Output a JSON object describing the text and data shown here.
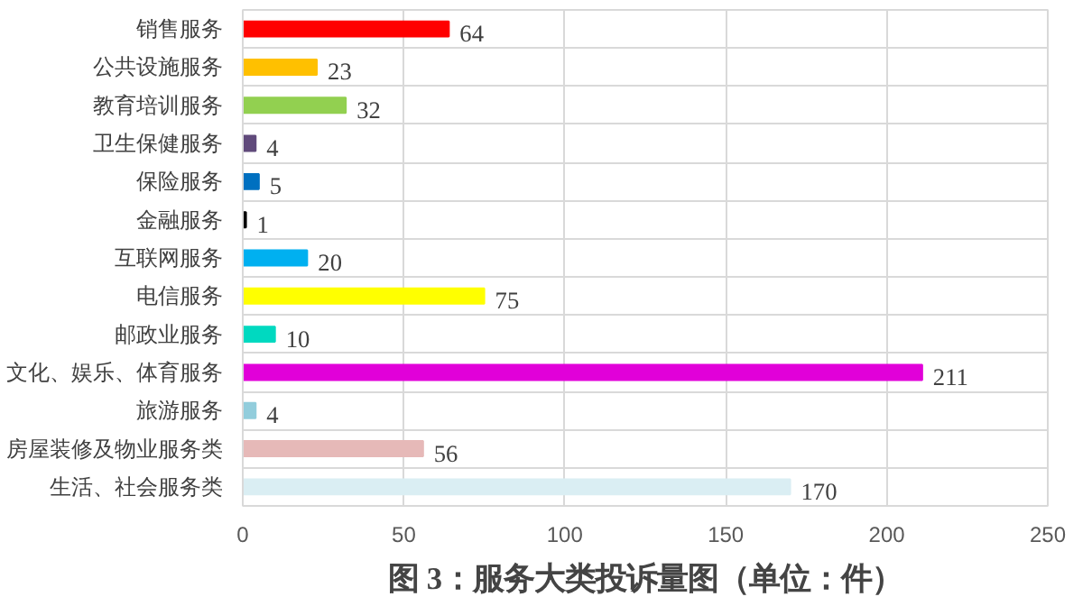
{
  "chart_data": {
    "type": "bar",
    "orientation": "horizontal",
    "title": "图 3：服务大类投诉量图（单位：件）",
    "categories": [
      "销售服务",
      "公共设施服务",
      "教育培训服务",
      "卫生保健服务",
      "保险服务",
      "金融服务",
      "互联网服务",
      "电信服务",
      "邮政业服务",
      "文化、娱乐、体育服务",
      "旅游服务",
      "房屋装修及物业服务类",
      "生活、社会服务类"
    ],
    "values": [
      64,
      23,
      32,
      4,
      5,
      1,
      20,
      75,
      10,
      211,
      4,
      56,
      170
    ],
    "colors": [
      "#ff0000",
      "#ffc000",
      "#92d050",
      "#604a7b",
      "#0070c0",
      "#000000",
      "#00b0f0",
      "#ffff00",
      "#00d9c0",
      "#e100d9",
      "#92cddc",
      "#e6b9b8",
      "#daeef3"
    ],
    "xlim": [
      0,
      250
    ],
    "xticks": [
      0,
      50,
      100,
      150,
      200,
      250
    ],
    "grid": true,
    "data_labels": true
  }
}
